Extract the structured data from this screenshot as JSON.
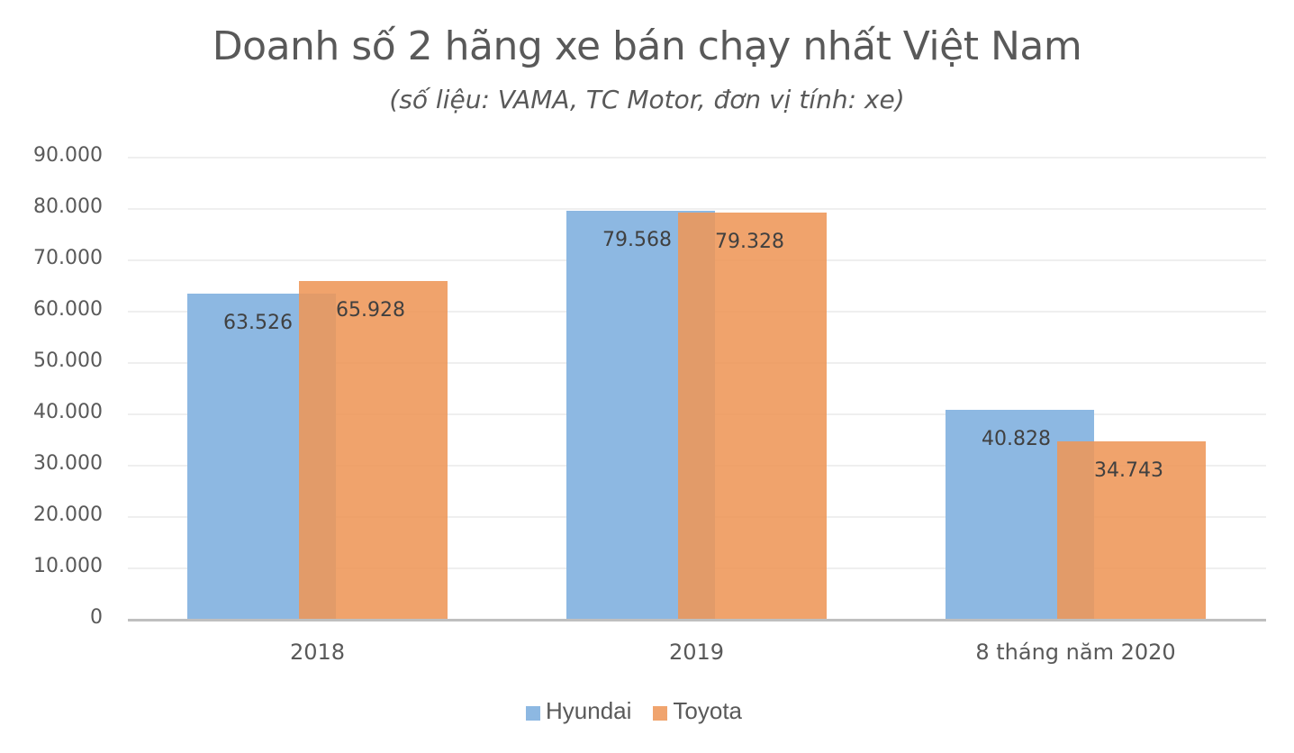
{
  "chart_data": {
    "type": "bar",
    "title": "Doanh số 2 hãng xe bán chạy nhất Việt Nam",
    "subtitle": "(số liệu: VAMA, TC Motor, đơn vị tính: xe)",
    "xlabel": "",
    "ylabel": "",
    "categories": [
      "2018",
      "2019",
      "8 tháng năm 2020"
    ],
    "series": [
      {
        "name": "Hyundai",
        "color": "#8DB8E2",
        "values": [
          63526,
          79568,
          40828
        ],
        "labels": [
          "63.526",
          "79.568",
          "40.828"
        ]
      },
      {
        "name": "Toyota",
        "color": "#F0A46E",
        "values": [
          65928,
          79328,
          34743
        ],
        "labels": [
          "65.928",
          "79.328",
          "34.743"
        ]
      }
    ],
    "ylim": [
      0,
      90000
    ],
    "yticks": [
      "0",
      "10.000",
      "20.000",
      "30.000",
      "40.000",
      "50.000",
      "60.000",
      "70.000",
      "80.000",
      "90.000"
    ],
    "grid": true,
    "legend_position": "bottom"
  },
  "legend": {
    "items": [
      {
        "label": "Hyundai",
        "color": "#8DB8E2"
      },
      {
        "label": "Toyota",
        "color": "#F0A46E"
      }
    ]
  }
}
